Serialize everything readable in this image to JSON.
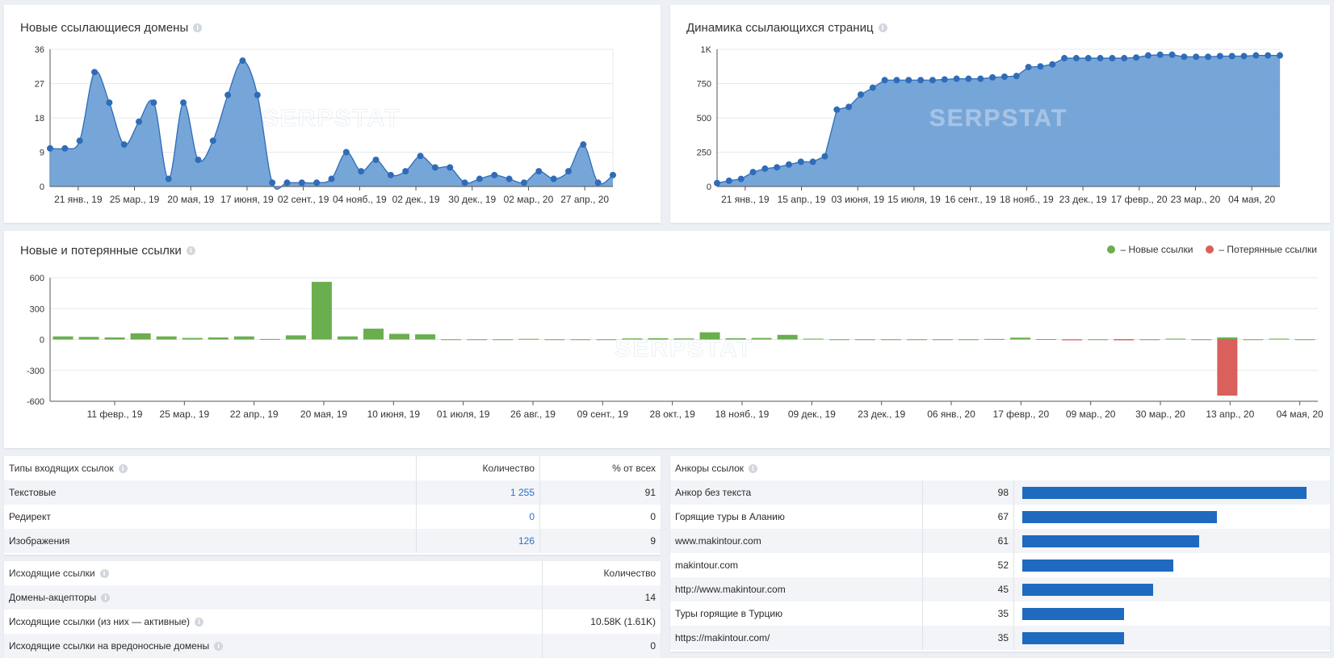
{
  "panels": {
    "new_domains": {
      "title": "Новые ссылающиеся домены"
    },
    "pages_dynamics": {
      "title": "Динамика ссылающихся страниц"
    },
    "new_lost": {
      "title": "Новые и потерянные ссылки",
      "legend_new": "– Новые ссылки",
      "legend_lost": "– Потерянные ссылки"
    }
  },
  "watermark": "SERPSTAT",
  "colors": {
    "area_fill": "#6fa0d6",
    "line": "#2f6cb8",
    "new_bar": "#6aae4e",
    "lost_bar": "#d9605c",
    "anchor_bar": "#1e6abf",
    "link": "#2a6fc9"
  },
  "chart_data": [
    {
      "type": "area",
      "title": "Новые ссылающиеся домены",
      "ylim": [
        0,
        36
      ],
      "yticks": [
        "0",
        "9",
        "18",
        "27",
        "36"
      ],
      "xticks": [
        "21 янв., 19",
        "25 мар., 19",
        "20 мая, 19",
        "17 июня, 19",
        "02 сент., 19",
        "04 нояб., 19",
        "02 дек., 19",
        "30 дек., 19",
        "02 мар., 20",
        "27 апр., 20"
      ],
      "values": [
        10,
        10,
        12,
        30,
        22,
        11,
        17,
        22,
        2,
        22,
        7,
        12,
        24,
        33,
        24,
        1,
        1,
        1,
        1,
        2,
        9,
        4,
        7,
        3,
        4,
        8,
        5,
        5,
        1,
        2,
        3,
        2,
        1,
        4,
        2,
        4,
        11,
        1,
        3
      ]
    },
    {
      "type": "area",
      "title": "Динамика ссылающихся страниц",
      "ylim": [
        0,
        1000
      ],
      "yticks": [
        "0",
        "250",
        "500",
        "750",
        "1K"
      ],
      "xticks": [
        "21 янв., 19",
        "15 апр., 19",
        "03 июня, 19",
        "15 июля, 19",
        "16 сент., 19",
        "18 нояб., 19",
        "23 дек., 19",
        "17 февр., 20",
        "23 мар., 20",
        "04 мая, 20"
      ],
      "values": [
        25,
        42,
        55,
        105,
        130,
        140,
        160,
        180,
        180,
        220,
        560,
        580,
        670,
        720,
        775,
        775,
        775,
        775,
        775,
        780,
        785,
        785,
        785,
        795,
        800,
        805,
        870,
        875,
        890,
        935,
        935,
        935,
        935,
        935,
        935,
        940,
        955,
        960,
        960,
        945,
        945,
        945,
        950,
        950,
        950,
        955,
        955,
        955
      ]
    },
    {
      "type": "bar",
      "title": "Новые и потерянные ссылки",
      "ylim": [
        -600,
        600
      ],
      "yticks": [
        "600",
        "300",
        "0",
        "-300",
        "-600"
      ],
      "xticks": [
        "11 февр., 19",
        "25 мар., 19",
        "22 апр., 19",
        "20 мая, 19",
        "10 июня, 19",
        "01 июля, 19",
        "26 авг., 19",
        "09 сент., 19",
        "28 окт., 19",
        "18 нояб., 19",
        "09 дек., 19",
        "23 дек., 19",
        "06 янв., 20",
        "17 февр., 20",
        "09 мар., 20",
        "30 мар., 20",
        "13 апр., 20",
        "04 мая, 20"
      ],
      "series": [
        {
          "name": "Новые ссылки",
          "values": [
            30,
            25,
            20,
            60,
            30,
            15,
            20,
            30,
            5,
            40,
            560,
            30,
            105,
            55,
            50,
            2,
            2,
            2,
            6,
            2,
            2,
            2,
            10,
            12,
            10,
            70,
            12,
            15,
            45,
            8,
            2,
            2,
            2,
            2,
            2,
            2,
            5,
            18,
            4,
            2,
            2,
            4,
            2,
            8,
            2,
            20,
            2,
            8,
            2
          ]
        },
        {
          "name": "Потерянные ссылки",
          "values": [
            0,
            0,
            0,
            0,
            0,
            0,
            0,
            0,
            0,
            0,
            0,
            0,
            0,
            0,
            0,
            0,
            0,
            0,
            0,
            0,
            0,
            0,
            0,
            0,
            0,
            0,
            0,
            0,
            0,
            0,
            0,
            0,
            0,
            0,
            0,
            0,
            0,
            0,
            0,
            -8,
            0,
            -5,
            0,
            0,
            0,
            -545,
            0,
            0,
            0
          ]
        }
      ]
    }
  ],
  "link_types": {
    "title": "Типы входящих ссылок",
    "col_count": "Количество",
    "col_pct": "% от всех",
    "rows": [
      {
        "label": "Текстовые",
        "count": "1 255",
        "pct": "91"
      },
      {
        "label": "Редирект",
        "count": "0",
        "pct": "0"
      },
      {
        "label": "Изображения",
        "count": "126",
        "pct": "9"
      }
    ]
  },
  "outgoing": {
    "title": "Исходящие ссылки",
    "col_count": "Количество",
    "rows": [
      {
        "label": "Домены-акцепторы",
        "value": "14"
      },
      {
        "label": "Исходящие ссылки (из них — активные)",
        "value": "10.58K (1.61K)"
      },
      {
        "label": "Исходящие ссылки на вредоносные домены",
        "value": "0"
      }
    ]
  },
  "anchors": {
    "title": "Анкоры ссылок",
    "max": 98,
    "rows": [
      {
        "label": "Анкор без текста",
        "count": "98",
        "value": 98
      },
      {
        "label": "Горящие туры в Аланию",
        "count": "67",
        "value": 67
      },
      {
        "label": "www.makintour.com",
        "count": "61",
        "value": 61
      },
      {
        "label": "makintour.com",
        "count": "52",
        "value": 52
      },
      {
        "label": "http://www.makintour.com",
        "count": "45",
        "value": 45
      },
      {
        "label": "Туры горящие в Турцию",
        "count": "35",
        "value": 35
      },
      {
        "label": "https://makintour.com/",
        "count": "35",
        "value": 35
      }
    ]
  }
}
